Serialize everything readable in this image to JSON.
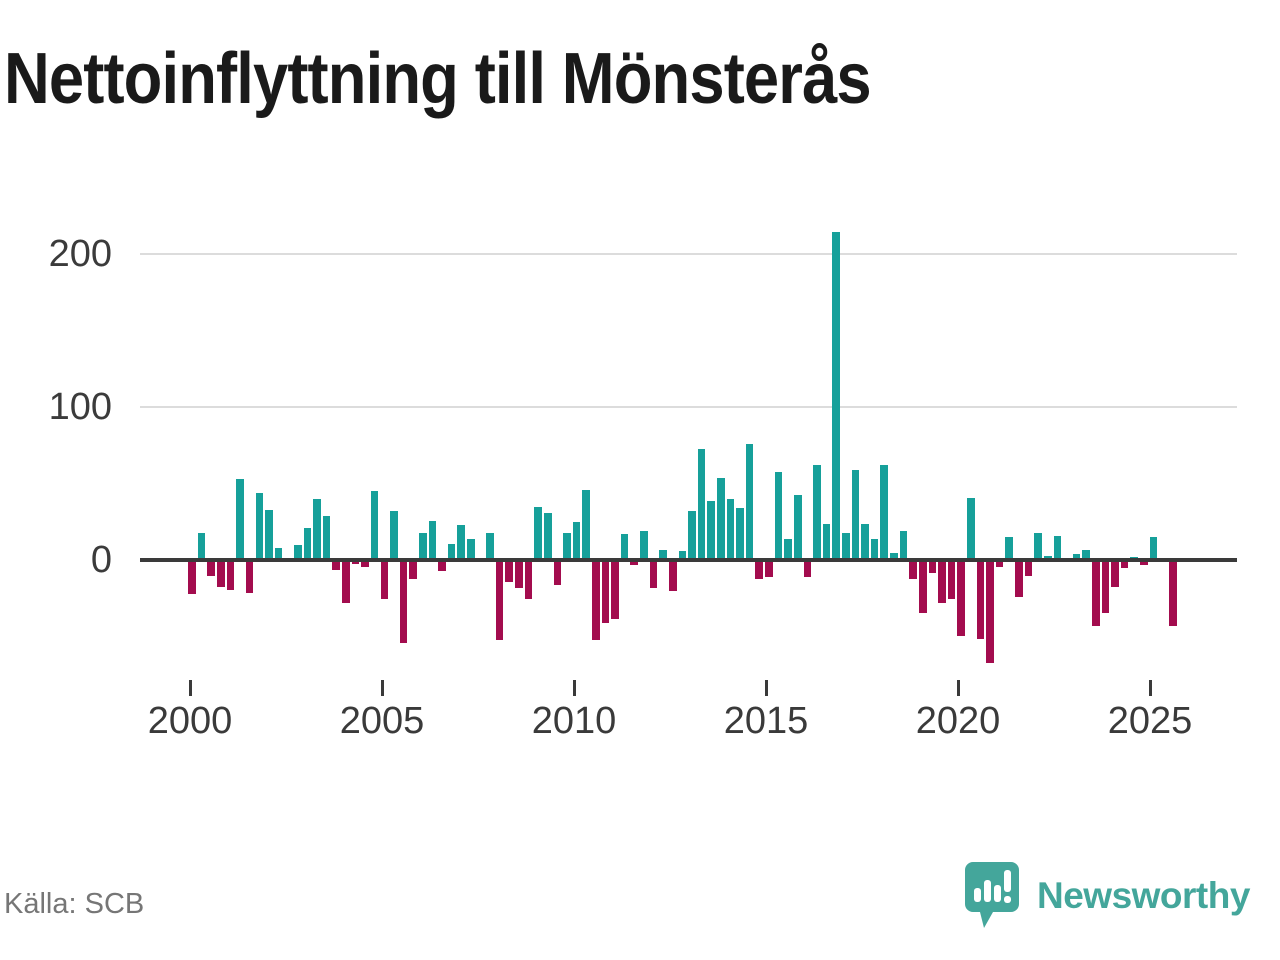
{
  "title": "Nettoinflyttning till Mönsterås",
  "source": "Källa: SCB",
  "branding": {
    "name": "Newsworthy",
    "logo_icon": "speech-bubble-bar-chart-icon",
    "color": "#44A69B"
  },
  "chart_data": {
    "type": "bar",
    "title": "Nettoinflyttning till Mönsterås",
    "frequency": "quarterly",
    "start_period": "2000-Q1",
    "end_period": "2025-Q3",
    "x_tick_labels": [
      "2000",
      "2005",
      "2010",
      "2015",
      "2020",
      "2025"
    ],
    "y_tick_labels": [
      "200",
      "100",
      "0"
    ],
    "ylim": [
      -80,
      230
    ],
    "grid": "horizontal",
    "legend": "none",
    "positive_color": "#16A09A",
    "negative_color": "#A30C4E",
    "values": [
      -22,
      18,
      -10,
      -17,
      -19,
      53,
      -21,
      44,
      33,
      8,
      1,
      10,
      21,
      40,
      29,
      -6,
      -28,
      -2,
      -4,
      45,
      -25,
      32,
      -54,
      -12,
      18,
      26,
      -7,
      11,
      23,
      14,
      1,
      18,
      -52,
      -14,
      -18,
      -25,
      35,
      31,
      -16,
      18,
      25,
      46,
      -52,
      -41,
      -38,
      17,
      -3,
      19,
      -18,
      7,
      -20,
      6,
      32,
      73,
      39,
      54,
      40,
      34,
      76,
      -12,
      -11,
      58,
      14,
      43,
      -11,
      62,
      24,
      214,
      18,
      59,
      24,
      14,
      62,
      5,
      19,
      -12,
      -34,
      -8,
      -28,
      -25,
      -49,
      41,
      -51,
      -67,
      -4,
      15,
      -24,
      -10,
      18,
      3,
      16,
      1,
      4,
      7,
      -43,
      -34,
      -17,
      -5,
      2,
      -3,
      15,
      0,
      -43
    ]
  }
}
